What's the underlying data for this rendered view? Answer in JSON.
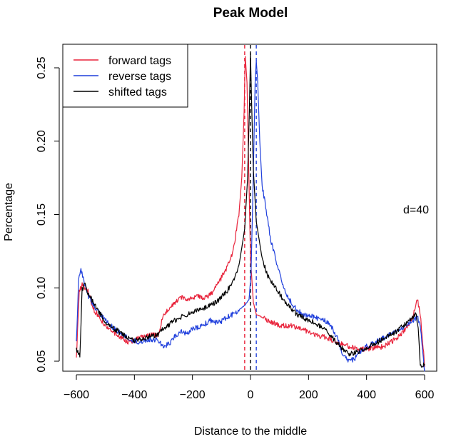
{
  "chart_data": {
    "type": "line",
    "title": "Peak Model",
    "xlabel": "Distance to the middle",
    "ylabel": "Percentage",
    "xlim": [
      -600,
      600
    ],
    "ylim": [
      0.045,
      0.26
    ],
    "xticks": [
      "-600",
      "-400",
      "-200",
      "0",
      "200",
      "400",
      "600"
    ],
    "yticks": [
      "0.05",
      "0.10",
      "0.15",
      "0.20",
      "0.25"
    ],
    "annotation": "d=40",
    "legend": {
      "position": "top-left"
    },
    "series": [
      {
        "name": "forward tags",
        "color": "#e8223a",
        "points": [
          [
            -600,
            0.051
          ],
          [
            -590,
            0.098
          ],
          [
            -580,
            0.102
          ],
          [
            -560,
            0.098
          ],
          [
            -540,
            0.085
          ],
          [
            -520,
            0.08
          ],
          [
            -500,
            0.073
          ],
          [
            -480,
            0.071
          ],
          [
            -460,
            0.068
          ],
          [
            -440,
            0.065
          ],
          [
            -420,
            0.063
          ],
          [
            -400,
            0.064
          ],
          [
            -380,
            0.066
          ],
          [
            -360,
            0.067
          ],
          [
            -340,
            0.068
          ],
          [
            -320,
            0.067
          ],
          [
            -300,
            0.082
          ],
          [
            -280,
            0.086
          ],
          [
            -260,
            0.09
          ],
          [
            -240,
            0.094
          ],
          [
            -220,
            0.092
          ],
          [
            -200,
            0.093
          ],
          [
            -180,
            0.094
          ],
          [
            -160,
            0.093
          ],
          [
            -140,
            0.095
          ],
          [
            -120,
            0.1
          ],
          [
            -100,
            0.107
          ],
          [
            -80,
            0.114
          ],
          [
            -60,
            0.125
          ],
          [
            -40,
            0.15
          ],
          [
            -30,
            0.175
          ],
          [
            -22,
            0.22
          ],
          [
            -18,
            0.258
          ],
          [
            -12,
            0.24
          ],
          [
            -5,
            0.17
          ],
          [
            0,
            0.12
          ],
          [
            10,
            0.09
          ],
          [
            20,
            0.082
          ],
          [
            40,
            0.08
          ],
          [
            60,
            0.078
          ],
          [
            80,
            0.076
          ],
          [
            100,
            0.074
          ],
          [
            140,
            0.074
          ],
          [
            180,
            0.072
          ],
          [
            220,
            0.068
          ],
          [
            260,
            0.066
          ],
          [
            300,
            0.063
          ],
          [
            340,
            0.06
          ],
          [
            380,
            0.058
          ],
          [
            420,
            0.059
          ],
          [
            460,
            0.06
          ],
          [
            500,
            0.065
          ],
          [
            540,
            0.073
          ],
          [
            560,
            0.08
          ],
          [
            575,
            0.093
          ],
          [
            585,
            0.082
          ],
          [
            595,
            0.06
          ],
          [
            600,
            0.046
          ]
        ]
      },
      {
        "name": "reverse tags",
        "color": "#1f3fdc",
        "points": [
          [
            -600,
            0.062
          ],
          [
            -592,
            0.105
          ],
          [
            -586,
            0.113
          ],
          [
            -575,
            0.106
          ],
          [
            -560,
            0.095
          ],
          [
            -540,
            0.088
          ],
          [
            -520,
            0.083
          ],
          [
            -500,
            0.078
          ],
          [
            -480,
            0.074
          ],
          [
            -460,
            0.071
          ],
          [
            -440,
            0.068
          ],
          [
            -420,
            0.065
          ],
          [
            -400,
            0.064
          ],
          [
            -380,
            0.063
          ],
          [
            -360,
            0.064
          ],
          [
            -340,
            0.065
          ],
          [
            -320,
            0.064
          ],
          [
            -300,
            0.06
          ],
          [
            -280,
            0.062
          ],
          [
            -260,
            0.067
          ],
          [
            -240,
            0.07
          ],
          [
            -220,
            0.069
          ],
          [
            -200,
            0.072
          ],
          [
            -180,
            0.073
          ],
          [
            -160,
            0.075
          ],
          [
            -140,
            0.078
          ],
          [
            -120,
            0.076
          ],
          [
            -100,
            0.077
          ],
          [
            -80,
            0.08
          ],
          [
            -60,
            0.082
          ],
          [
            -40,
            0.085
          ],
          [
            -20,
            0.088
          ],
          [
            -5,
            0.092
          ],
          [
            2,
            0.11
          ],
          [
            10,
            0.18
          ],
          [
            16,
            0.24
          ],
          [
            20,
            0.255
          ],
          [
            25,
            0.24
          ],
          [
            32,
            0.2
          ],
          [
            40,
            0.17
          ],
          [
            50,
            0.158
          ],
          [
            60,
            0.145
          ],
          [
            70,
            0.132
          ],
          [
            80,
            0.125
          ],
          [
            100,
            0.11
          ],
          [
            120,
            0.098
          ],
          [
            140,
            0.09
          ],
          [
            160,
            0.085
          ],
          [
            180,
            0.082
          ],
          [
            200,
            0.081
          ],
          [
            220,
            0.08
          ],
          [
            240,
            0.079
          ],
          [
            260,
            0.077
          ],
          [
            280,
            0.073
          ],
          [
            300,
            0.065
          ],
          [
            320,
            0.054
          ],
          [
            340,
            0.05
          ],
          [
            360,
            0.052
          ],
          [
            380,
            0.057
          ],
          [
            400,
            0.06
          ],
          [
            420,
            0.062
          ],
          [
            440,
            0.064
          ],
          [
            460,
            0.066
          ],
          [
            480,
            0.068
          ],
          [
            500,
            0.07
          ],
          [
            520,
            0.072
          ],
          [
            540,
            0.075
          ],
          [
            560,
            0.078
          ],
          [
            575,
            0.08
          ],
          [
            585,
            0.075
          ],
          [
            592,
            0.06
          ],
          [
            600,
            0.043
          ]
        ]
      },
      {
        "name": "shifted tags",
        "color": "#000000",
        "points": [
          [
            -600,
            0.058
          ],
          [
            -595,
            0.056
          ],
          [
            -588,
            0.054
          ],
          [
            -580,
            0.099
          ],
          [
            -570,
            0.103
          ],
          [
            -560,
            0.096
          ],
          [
            -540,
            0.09
          ],
          [
            -520,
            0.083
          ],
          [
            -500,
            0.076
          ],
          [
            -480,
            0.073
          ],
          [
            -460,
            0.071
          ],
          [
            -440,
            0.068
          ],
          [
            -420,
            0.066
          ],
          [
            -400,
            0.064
          ],
          [
            -380,
            0.065
          ],
          [
            -360,
            0.066
          ],
          [
            -340,
            0.067
          ],
          [
            -320,
            0.068
          ],
          [
            -300,
            0.072
          ],
          [
            -280,
            0.075
          ],
          [
            -260,
            0.078
          ],
          [
            -240,
            0.08
          ],
          [
            -220,
            0.082
          ],
          [
            -200,
            0.083
          ],
          [
            -180,
            0.085
          ],
          [
            -160,
            0.086
          ],
          [
            -140,
            0.088
          ],
          [
            -120,
            0.09
          ],
          [
            -100,
            0.094
          ],
          [
            -80,
            0.098
          ],
          [
            -60,
            0.105
          ],
          [
            -40,
            0.115
          ],
          [
            -20,
            0.14
          ],
          [
            -10,
            0.175
          ],
          [
            -4,
            0.22
          ],
          [
            0,
            0.26
          ],
          [
            4,
            0.225
          ],
          [
            10,
            0.18
          ],
          [
            20,
            0.145
          ],
          [
            40,
            0.12
          ],
          [
            60,
            0.108
          ],
          [
            80,
            0.102
          ],
          [
            100,
            0.096
          ],
          [
            120,
            0.09
          ],
          [
            140,
            0.086
          ],
          [
            160,
            0.082
          ],
          [
            180,
            0.08
          ],
          [
            200,
            0.078
          ],
          [
            220,
            0.076
          ],
          [
            240,
            0.074
          ],
          [
            260,
            0.071
          ],
          [
            280,
            0.067
          ],
          [
            300,
            0.062
          ],
          [
            320,
            0.058
          ],
          [
            340,
            0.055
          ],
          [
            360,
            0.056
          ],
          [
            380,
            0.057
          ],
          [
            400,
            0.059
          ],
          [
            420,
            0.061
          ],
          [
            440,
            0.063
          ],
          [
            460,
            0.066
          ],
          [
            480,
            0.068
          ],
          [
            500,
            0.07
          ],
          [
            520,
            0.073
          ],
          [
            540,
            0.076
          ],
          [
            560,
            0.08
          ],
          [
            570,
            0.083
          ],
          [
            578,
            0.072
          ],
          [
            585,
            0.046
          ],
          [
            595,
            0.047
          ],
          [
            600,
            0.048
          ]
        ]
      }
    ],
    "vlines": [
      {
        "x": -20,
        "color": "#e8223a"
      },
      {
        "x": 0,
        "color": "#000000"
      },
      {
        "x": 20,
        "color": "#1f3fdc"
      }
    ]
  }
}
